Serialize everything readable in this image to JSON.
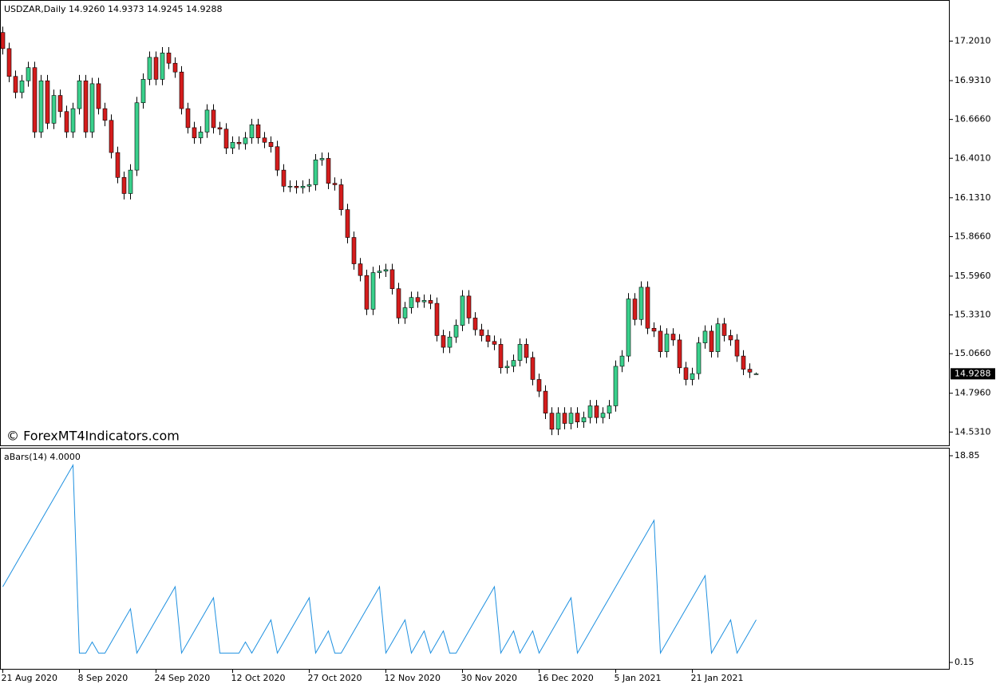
{
  "chart_data": [
    {
      "type": "candlestick",
      "title": "USDZAR,Daily  14.9260 14.9373 14.9245 14.9288",
      "watermark": "© ForexMT4Indicators.com",
      "categories": [
        "21 Aug 2020",
        null,
        null,
        null,
        null,
        null,
        null,
        null,
        null,
        null,
        null,
        null,
        "8 Sep 2020",
        null,
        null,
        null,
        null,
        null,
        null,
        null,
        null,
        null,
        null,
        null,
        "24 Sep 2020",
        null,
        null,
        null,
        null,
        null,
        null,
        null,
        null,
        null,
        null,
        null,
        "12 Oct 2020",
        null,
        null,
        null,
        null,
        null,
        null,
        null,
        null,
        null,
        null,
        null,
        "27 Oct 2020",
        null,
        null,
        null,
        null,
        null,
        null,
        null,
        null,
        null,
        null,
        null,
        "12 Nov 2020",
        null,
        null,
        null,
        null,
        null,
        null,
        null,
        null,
        null,
        null,
        null,
        "30 Nov 2020",
        null,
        null,
        null,
        null,
        null,
        null,
        null,
        null,
        null,
        null,
        null,
        "16 Dec 2020",
        null,
        null,
        null,
        null,
        null,
        null,
        null,
        null,
        null,
        null,
        null,
        "5 Jan 2021",
        null,
        null,
        null,
        null,
        null,
        null,
        null,
        null,
        null,
        null,
        null,
        "21 Jan 2021",
        null,
        null,
        null,
        null,
        null,
        null,
        null,
        null,
        null,
        null
      ],
      "ohlc": [
        [
          17.26,
          17.3,
          17.11,
          17.15
        ],
        [
          17.15,
          17.19,
          16.92,
          16.96
        ],
        [
          16.96,
          17.0,
          16.81,
          16.85
        ],
        [
          16.85,
          16.97,
          16.81,
          16.93
        ],
        [
          16.93,
          17.06,
          16.89,
          17.02
        ],
        [
          17.02,
          17.06,
          16.54,
          16.58
        ],
        [
          16.58,
          16.97,
          16.54,
          16.93
        ],
        [
          16.93,
          16.97,
          16.6,
          16.64
        ],
        [
          16.64,
          16.87,
          16.6,
          16.83
        ],
        [
          16.83,
          16.87,
          16.68,
          16.72
        ],
        [
          16.72,
          16.76,
          16.54,
          16.58
        ],
        [
          16.58,
          16.78,
          16.54,
          16.74
        ],
        [
          16.74,
          16.97,
          16.7,
          16.93
        ],
        [
          16.93,
          16.97,
          16.54,
          16.58
        ],
        [
          16.58,
          16.95,
          16.54,
          16.91
        ],
        [
          16.91,
          16.95,
          16.7,
          16.74
        ],
        [
          16.74,
          16.78,
          16.62,
          16.66
        ],
        [
          16.66,
          16.7,
          16.4,
          16.44
        ],
        [
          16.44,
          16.48,
          16.23,
          16.27
        ],
        [
          16.27,
          16.31,
          16.12,
          16.16
        ],
        [
          16.16,
          16.36,
          16.12,
          16.32
        ],
        [
          16.32,
          16.82,
          16.28,
          16.78
        ],
        [
          16.78,
          16.98,
          16.74,
          16.94
        ],
        [
          16.94,
          17.13,
          16.9,
          17.09
        ],
        [
          17.09,
          17.13,
          16.9,
          16.94
        ],
        [
          16.94,
          17.16,
          16.9,
          17.12
        ],
        [
          17.12,
          17.16,
          17.01,
          17.05
        ],
        [
          17.05,
          17.09,
          16.95,
          16.99
        ],
        [
          16.99,
          17.03,
          16.7,
          16.74
        ],
        [
          16.74,
          16.78,
          16.57,
          16.61
        ],
        [
          16.61,
          16.65,
          16.5,
          16.54
        ],
        [
          16.54,
          16.62,
          16.5,
          16.58
        ],
        [
          16.58,
          16.77,
          16.54,
          16.73
        ],
        [
          16.73,
          16.77,
          16.57,
          16.61
        ],
        [
          16.61,
          16.65,
          16.56,
          16.6
        ],
        [
          16.6,
          16.64,
          16.43,
          16.47
        ],
        [
          16.47,
          16.55,
          16.43,
          16.51
        ],
        [
          16.51,
          16.55,
          16.46,
          16.5
        ],
        [
          16.5,
          16.58,
          16.46,
          16.54
        ],
        [
          16.54,
          16.67,
          16.5,
          16.63
        ],
        [
          16.63,
          16.67,
          16.5,
          16.54
        ],
        [
          16.54,
          16.58,
          16.47,
          16.51
        ],
        [
          16.51,
          16.55,
          16.44,
          16.48
        ],
        [
          16.48,
          16.52,
          16.28,
          16.32
        ],
        [
          16.32,
          16.36,
          16.17,
          16.21
        ],
        [
          16.21,
          16.25,
          16.17,
          16.21
        ],
        [
          16.21,
          16.25,
          16.16,
          16.2
        ],
        [
          16.2,
          16.25,
          16.16,
          16.21
        ],
        [
          16.21,
          16.26,
          16.17,
          16.22
        ],
        [
          16.22,
          16.43,
          16.18,
          16.39
        ],
        [
          16.39,
          16.44,
          16.35,
          16.4
        ],
        [
          16.4,
          16.44,
          16.19,
          16.23
        ],
        [
          16.23,
          16.27,
          16.18,
          16.22
        ],
        [
          16.22,
          16.26,
          16.01,
          16.05
        ],
        [
          16.05,
          16.09,
          15.82,
          15.86
        ],
        [
          15.86,
          15.9,
          15.64,
          15.68
        ],
        [
          15.68,
          15.72,
          15.56,
          15.6
        ],
        [
          15.6,
          15.64,
          15.33,
          15.37
        ],
        [
          15.37,
          15.66,
          15.33,
          15.62
        ],
        [
          15.62,
          15.67,
          15.58,
          15.63
        ],
        [
          15.63,
          15.68,
          15.59,
          15.64
        ],
        [
          15.64,
          15.68,
          15.47,
          15.51
        ],
        [
          15.51,
          15.55,
          15.27,
          15.31
        ],
        [
          15.31,
          15.42,
          15.27,
          15.38
        ],
        [
          15.38,
          15.49,
          15.34,
          15.45
        ],
        [
          15.45,
          15.49,
          15.38,
          15.42
        ],
        [
          15.42,
          15.47,
          15.38,
          15.43
        ],
        [
          15.43,
          15.47,
          15.37,
          15.41
        ],
        [
          15.41,
          15.45,
          15.15,
          15.19
        ],
        [
          15.19,
          15.23,
          15.07,
          15.11
        ],
        [
          15.11,
          15.22,
          15.07,
          15.18
        ],
        [
          15.18,
          15.3,
          15.14,
          15.26
        ],
        [
          15.26,
          15.5,
          15.22,
          15.46
        ],
        [
          15.46,
          15.5,
          15.27,
          15.31
        ],
        [
          15.31,
          15.35,
          15.19,
          15.23
        ],
        [
          15.23,
          15.27,
          15.15,
          15.19
        ],
        [
          15.19,
          15.23,
          15.11,
          15.15
        ],
        [
          15.15,
          15.19,
          15.09,
          15.13
        ],
        [
          15.13,
          15.17,
          14.93,
          14.97
        ],
        [
          14.97,
          15.02,
          14.93,
          14.98
        ],
        [
          14.98,
          15.06,
          14.94,
          15.02
        ],
        [
          15.02,
          15.17,
          14.98,
          15.13
        ],
        [
          15.13,
          15.17,
          15.0,
          15.04
        ],
        [
          15.04,
          15.08,
          14.85,
          14.89
        ],
        [
          14.89,
          14.93,
          14.77,
          14.81
        ],
        [
          14.81,
          14.85,
          14.62,
          14.66
        ],
        [
          14.66,
          14.7,
          14.51,
          14.55
        ],
        [
          14.55,
          14.7,
          14.51,
          14.66
        ],
        [
          14.66,
          14.7,
          14.55,
          14.59
        ],
        [
          14.59,
          14.7,
          14.55,
          14.66
        ],
        [
          14.66,
          14.7,
          14.56,
          14.6
        ],
        [
          14.6,
          14.67,
          14.56,
          14.63
        ],
        [
          14.63,
          14.75,
          14.59,
          14.71
        ],
        [
          14.71,
          14.75,
          14.59,
          14.63
        ],
        [
          14.63,
          14.7,
          14.59,
          14.66
        ],
        [
          14.66,
          14.75,
          14.62,
          14.71
        ],
        [
          14.71,
          15.02,
          14.67,
          14.98
        ],
        [
          14.98,
          15.09,
          14.94,
          15.05
        ],
        [
          15.05,
          15.48,
          15.01,
          15.44
        ],
        [
          15.44,
          15.48,
          15.26,
          15.3
        ],
        [
          15.3,
          15.56,
          15.26,
          15.52
        ],
        [
          15.52,
          15.56,
          15.2,
          15.24
        ],
        [
          15.24,
          15.28,
          15.18,
          15.22
        ],
        [
          15.22,
          15.26,
          15.04,
          15.08
        ],
        [
          15.08,
          15.24,
          15.04,
          15.2
        ],
        [
          15.2,
          15.24,
          15.12,
          15.16
        ],
        [
          15.16,
          15.2,
          14.93,
          14.97
        ],
        [
          14.97,
          15.01,
          14.85,
          14.89
        ],
        [
          14.89,
          14.97,
          14.85,
          14.93
        ],
        [
          14.93,
          15.18,
          14.89,
          15.14
        ],
        [
          15.14,
          15.26,
          15.1,
          15.22
        ],
        [
          15.22,
          15.26,
          15.04,
          15.08
        ],
        [
          15.08,
          15.31,
          15.04,
          15.27
        ],
        [
          15.27,
          15.31,
          15.15,
          15.19
        ],
        [
          15.19,
          15.23,
          15.12,
          15.16
        ],
        [
          15.16,
          15.2,
          15.01,
          15.05
        ],
        [
          15.05,
          15.09,
          14.92,
          14.96
        ],
        [
          14.96,
          15.0,
          14.9,
          14.94
        ],
        [
          14.926,
          14.9373,
          14.9245,
          14.9288
        ]
      ],
      "up_color": "#3ad08c",
      "down_color": "#d41c1c",
      "ylim": [
        14.44,
        17.46
      ],
      "yticks": [
        {
          "value": 17.201,
          "label": "17.2010"
        },
        {
          "value": 16.931,
          "label": "16.9310"
        },
        {
          "value": 16.666,
          "label": "16.6660"
        },
        {
          "value": 16.401,
          "label": "16.4010"
        },
        {
          "value": 16.131,
          "label": "16.1310"
        },
        {
          "value": 15.866,
          "label": "15.8660"
        },
        {
          "value": 15.596,
          "label": "15.5960"
        },
        {
          "value": 15.331,
          "label": "15.3310"
        },
        {
          "value": 15.066,
          "label": "15.0660"
        },
        {
          "value": 14.796,
          "label": "14.7960"
        },
        {
          "value": 14.531,
          "label": "14.5310"
        }
      ],
      "last_price": {
        "value": 14.9288,
        "label": "14.9288"
      }
    },
    {
      "type": "line",
      "title": "aBars(14) 4.0000",
      "color": "#1e90e0",
      "values": [
        7,
        8,
        9,
        10,
        11,
        12,
        13,
        14,
        15,
        16,
        17,
        18,
        1,
        1,
        2,
        1,
        1,
        2,
        3,
        4,
        5,
        1,
        2,
        3,
        4,
        5,
        6,
        7,
        1,
        2,
        3,
        4,
        5,
        6,
        1,
        1,
        1,
        1,
        2,
        1,
        2,
        3,
        4,
        1,
        2,
        3,
        4,
        5,
        6,
        1,
        2,
        3,
        1,
        1,
        2,
        3,
        4,
        5,
        6,
        7,
        1,
        2,
        3,
        4,
        1,
        2,
        3,
        1,
        2,
        3,
        1,
        1,
        2,
        3,
        4,
        5,
        6,
        7,
        1,
        2,
        3,
        1,
        2,
        3,
        1,
        2,
        3,
        4,
        5,
        6,
        1,
        2,
        3,
        4,
        5,
        6,
        7,
        8,
        9,
        10,
        11,
        12,
        13,
        1,
        2,
        3,
        4,
        5,
        6,
        7,
        8,
        1,
        2,
        3,
        4,
        1,
        2,
        3,
        4
      ],
      "ylim": [
        -0.43,
        19.5
      ],
      "yticks": [
        18.85,
        0.15
      ]
    }
  ]
}
